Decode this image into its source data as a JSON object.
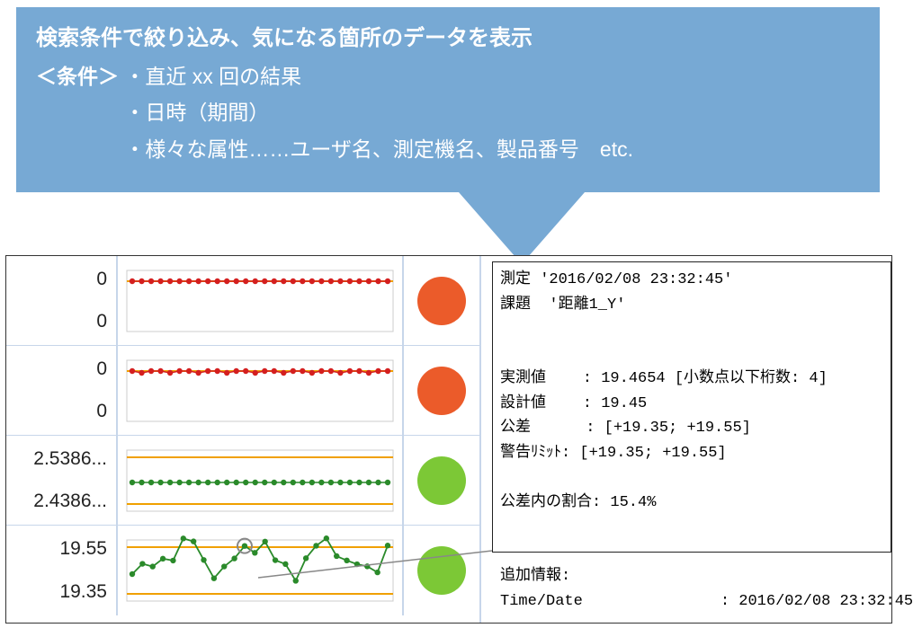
{
  "callout": {
    "title": "検索条件で絞り込み、気になる箇所のデータを表示",
    "cond_label": "＜条件＞",
    "lines": [
      "・直近 xx 回の結果",
      "・日時（期間）",
      "・様々な属性……ユーザ名、測定機名、製品番号　etc."
    ],
    "bg_color": "#77a9d4",
    "text_color": "#ffffff"
  },
  "rows": [
    {
      "upper": "0",
      "lower": "0",
      "chart": {
        "type": "line",
        "color": "#d41f1f",
        "style": "flat_top",
        "band_color": "#f0a000"
      },
      "dot_color": "#eb5b2a"
    },
    {
      "upper": "0",
      "lower": "0",
      "chart": {
        "type": "line",
        "color": "#d41f1f",
        "style": "flat_top_jitter",
        "band_color": "#f0a000"
      },
      "dot_color": "#eb5b2a"
    },
    {
      "upper": "2.5386...",
      "lower": "2.4386...",
      "chart": {
        "type": "line",
        "color": "#2a8a2a",
        "style": "flat_mid",
        "band_color": "#f0a000"
      },
      "dot_color": "#7cc836"
    },
    {
      "upper": "19.55",
      "lower": "19.35",
      "chart": {
        "type": "line",
        "color": "#2a8a2a",
        "style": "zigzag",
        "band_color": "#f0a000",
        "highlight_index": 11
      },
      "dot_color": "#7cc836"
    }
  ],
  "detail": {
    "measure_label": "測定",
    "measure_value": "'2016/02/08 23:32:45'",
    "task_label": "課題",
    "task_value": "'距離1_Y'",
    "actual_label": "実測値",
    "actual_value": "19.4654 [小数点以下桁数: 4]",
    "design_label": "設計値",
    "design_value": "19.45",
    "tol_label": "公差",
    "tol_value": "[+19.35; +19.55]",
    "warn_label": "警告ﾘﾐｯﾄ",
    "warn_value": "[+19.35; +19.55]",
    "ratio_label": "公差内の割合",
    "ratio_value": "15.4%",
    "addl_label": "追加情報:",
    "td_label": "Time/Date",
    "td_value": "2016/02/08 23:32:45"
  },
  "colors": {
    "grid_border": "#c7d6ea",
    "panel_border": "#333333"
  }
}
